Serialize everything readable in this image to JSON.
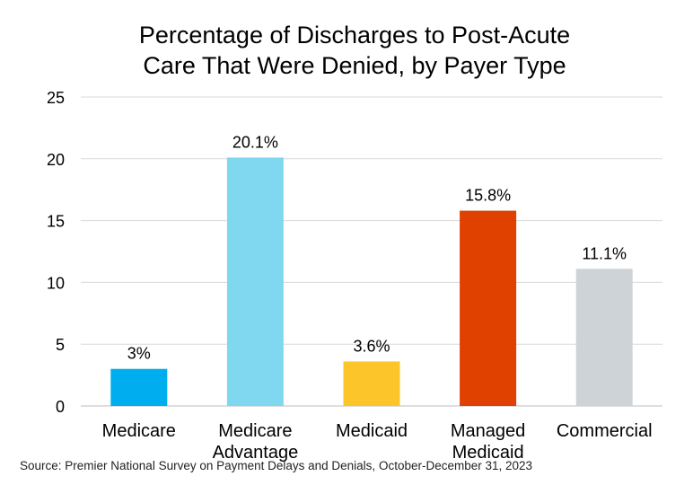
{
  "chart_data": {
    "type": "bar",
    "title_lines": [
      "Percentage of Discharges to Post-Acute",
      "Care That Were Denied, by Payer Type"
    ],
    "categories": [
      [
        "Medicare"
      ],
      [
        "Medicare",
        "Advantage"
      ],
      [
        "Medicaid"
      ],
      [
        "Managed",
        "Medicaid"
      ],
      [
        "Commercial"
      ]
    ],
    "values": [
      3,
      20.1,
      3.6,
      15.8,
      11.1
    ],
    "data_labels": [
      "3%",
      "20.1%",
      "3.6%",
      "15.8%",
      "11.1%"
    ],
    "colors": [
      "#00AEEF",
      "#7FD8F0",
      "#FCC52A",
      "#E04000",
      "#CED3D8"
    ],
    "ylim": [
      0,
      25
    ],
    "yticks": [
      0,
      5,
      10,
      15,
      20,
      25
    ],
    "grid": true,
    "legend": false
  },
  "source": "Source: Premier National Survey on Payment Delays and Denials, October-December 31, 2023"
}
